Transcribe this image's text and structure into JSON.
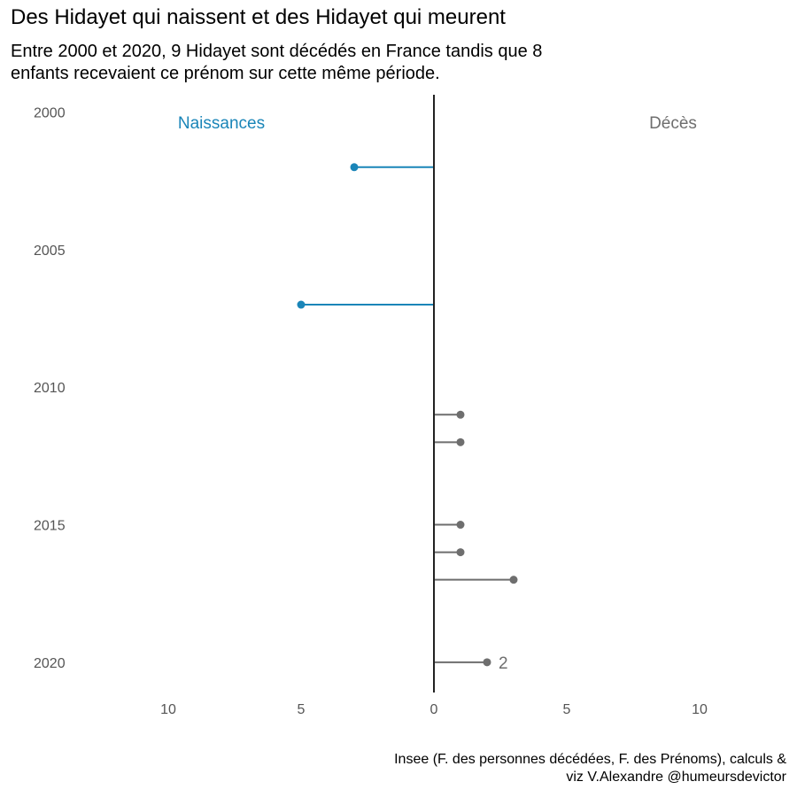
{
  "title": "Des Hidayet qui naissent et des Hidayet qui meurent",
  "subtitle_line1": "Entre 2000 et 2020, 9 Hidayet sont décédés en France tandis que 8",
  "subtitle_line2": "enfants recevaient ce prénom sur cette même période.",
  "caption_line1": "Insee (F. des personnes décédées, F. des Prénoms), calculs &",
  "caption_line2": "viz V.Alexandre @humeursdevictor",
  "colors": {
    "naissances": "#1a85b8",
    "deces": "#6e6e6e",
    "axis": "#222222"
  },
  "chart_data": {
    "type": "lollipop",
    "side_labels": {
      "left": "Naissances",
      "right": "Décès"
    },
    "x_ticks": [
      {
        "value": -10,
        "label": "10"
      },
      {
        "value": -5,
        "label": "5"
      },
      {
        "value": 0,
        "label": "0"
      },
      {
        "value": 5,
        "label": "5"
      },
      {
        "value": 10,
        "label": "10"
      }
    ],
    "y_ticks": [
      2000,
      2005,
      2010,
      2015,
      2020
    ],
    "xlim": [
      -13,
      13
    ],
    "ylim": [
      1999.4,
      2021.1
    ],
    "naissances": [
      {
        "year": 2002,
        "value": 3
      },
      {
        "year": 2007,
        "value": 5
      }
    ],
    "deces": [
      {
        "year": 2011,
        "value": 1
      },
      {
        "year": 2012,
        "value": 1
      },
      {
        "year": 2015,
        "value": 1
      },
      {
        "year": 2016,
        "value": 1
      },
      {
        "year": 2017,
        "value": 3
      },
      {
        "year": 2020,
        "value": 2
      }
    ],
    "value_labels": [
      {
        "series": "deces",
        "year": 2020,
        "text": "2"
      }
    ]
  }
}
